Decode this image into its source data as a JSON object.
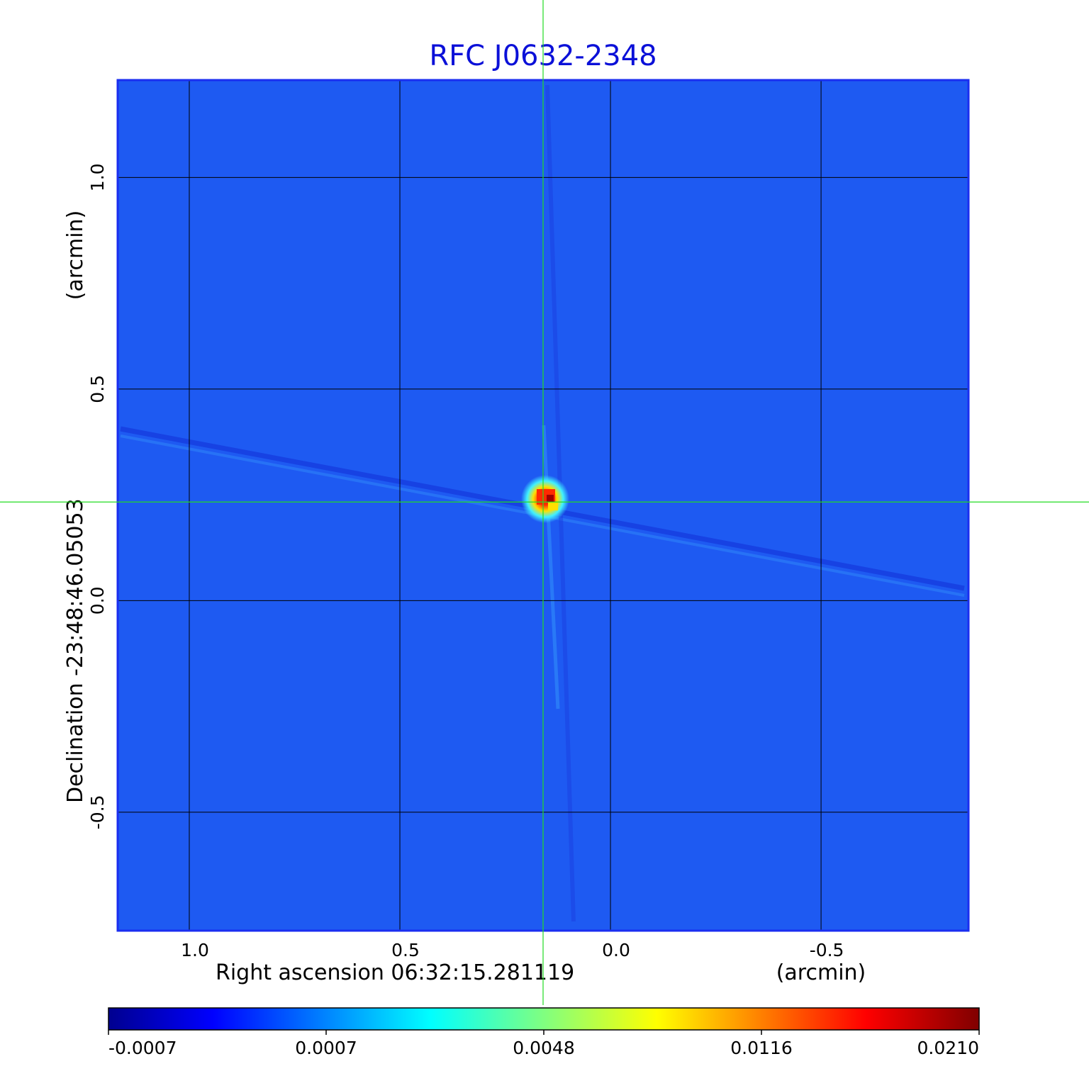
{
  "chart_data": {
    "type": "heatmap",
    "title": "RFC J0632-2348",
    "xlabel": "Right ascension  06:32:15.281119",
    "xunit": "(arcmin)",
    "ylabel": "Declination  -23:48:46.05053",
    "yunit": "(arcmin)",
    "xlim": [
      1.17,
      -0.85
    ],
    "ylim": [
      -0.78,
      1.23
    ],
    "x_ticks": [
      {
        "value": 1.0,
        "label": "1.0"
      },
      {
        "value": 0.5,
        "label": "0.5"
      },
      {
        "value": 0.0,
        "label": "0.0"
      },
      {
        "value": -0.5,
        "label": "-0.5"
      }
    ],
    "y_ticks": [
      {
        "value": 1.0,
        "label": "1.0"
      },
      {
        "value": 0.5,
        "label": "0.5"
      },
      {
        "value": 0.0,
        "label": "0.0"
      },
      {
        "value": -0.5,
        "label": "-0.5"
      }
    ],
    "grid": true,
    "crosshair": {
      "x": 0.16,
      "y": 0.233
    },
    "source": {
      "x": 0.155,
      "y": 0.24,
      "peak": 0.021
    },
    "colorbar": {
      "colormap": "jet",
      "ticks": [
        {
          "value": -0.0007,
          "label": "-0.0007"
        },
        {
          "value": 0.0007,
          "label": "0.0007"
        },
        {
          "value": 0.0048,
          "label": "0.0048"
        },
        {
          "value": 0.0116,
          "label": "0.0116"
        },
        {
          "value": 0.021,
          "label": "0.0210"
        }
      ]
    }
  },
  "colors": {
    "title": "#0b10d8",
    "frame": "#1a2ef0",
    "grid": "#000000",
    "crosshair": "#22dd22",
    "background_noise": "#1e5af2"
  }
}
